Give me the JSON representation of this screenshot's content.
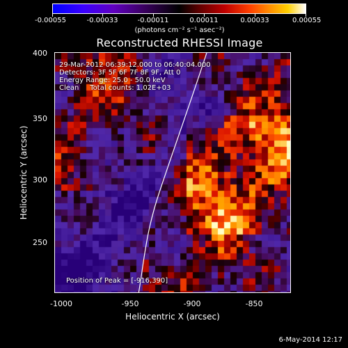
{
  "colorbar": {
    "ticks": [
      "-0.00055",
      "-0.00033",
      "-0.00011",
      "0.00011",
      "0.00033",
      "0.00055"
    ],
    "units": "(photons cm⁻² s⁻¹ asec⁻²)"
  },
  "title": "Reconstructed RHESSI Image",
  "info": {
    "line1": "29-Mar-2012 06:39:12.000 to 06:40:04.000",
    "line2": "Detectors: 3F 5F 6F 7F 8F 9F, Att 0",
    "line3": "Energy Range: 25.0 - 50.0 keV",
    "line4": "Clean     Total counts: 1.02E+03",
    "peak": "Position of Peak = [-916,390]"
  },
  "axes": {
    "xlabel": "Heliocentric X (arcsec)",
    "ylabel": "Heliocentric Y (arcsec)",
    "xticks": [
      "-1000",
      "-950",
      "-900",
      "-850"
    ],
    "yticks": [
      "400",
      "350",
      "300",
      "250"
    ]
  },
  "footer": {
    "date": "6-May-2014 12:17"
  }
}
